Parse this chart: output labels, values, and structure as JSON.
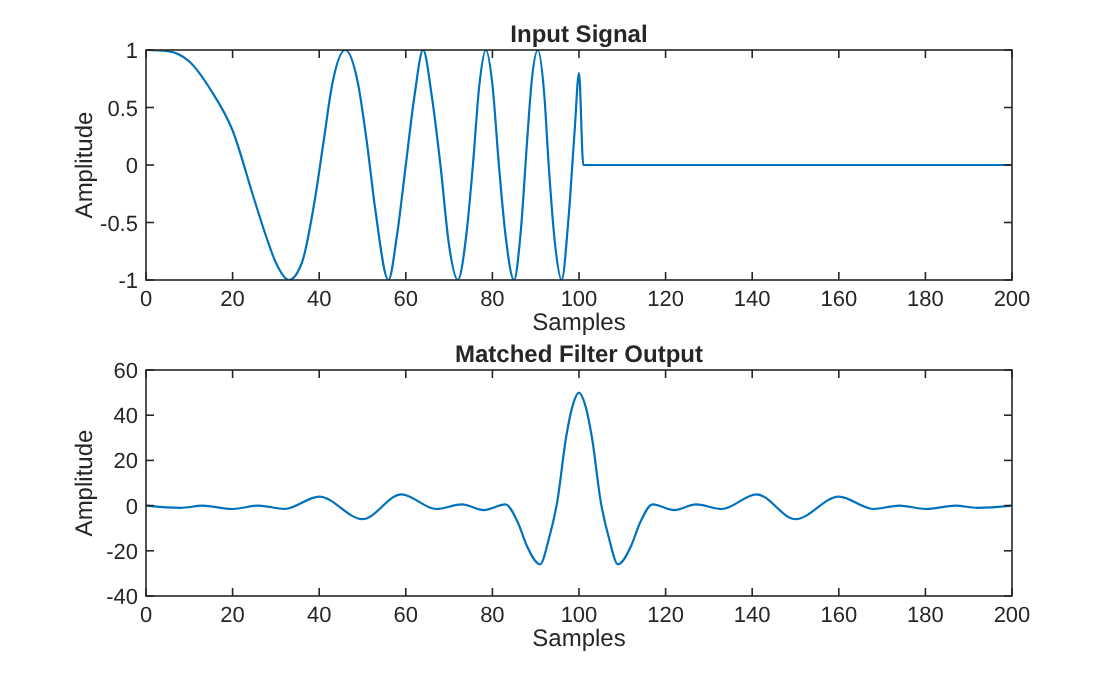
{
  "chart_data": [
    {
      "type": "line",
      "title": "Input Signal",
      "xlabel": "Samples",
      "ylabel": "Amplitude",
      "xlim": [
        0,
        200
      ],
      "xticks": [
        0,
        20,
        40,
        60,
        80,
        100,
        120,
        140,
        160,
        180,
        200
      ],
      "ylim": [
        -1,
        1
      ],
      "yticks": [
        -1,
        -0.5,
        0,
        0.5,
        1
      ],
      "grid": false,
      "series": [
        {
          "color": "#0072bd",
          "x": [
            0,
            5,
            10,
            15,
            20,
            25,
            28,
            30,
            33,
            36,
            39,
            41,
            43,
            46,
            49,
            51,
            53,
            56,
            58,
            60,
            62,
            64,
            66,
            68,
            70,
            72,
            74,
            75.5,
            77,
            78.5,
            80,
            81.5,
            83,
            85,
            86.5,
            88,
            89,
            90.5,
            92,
            93,
            94.5,
            96,
            97.5,
            99,
            100,
            101,
            200
          ],
          "values": [
            1,
            0.99,
            0.9,
            0.65,
            0.3,
            -0.3,
            -0.65,
            -0.85,
            -1,
            -0.85,
            -0.3,
            0.2,
            0.7,
            1,
            0.7,
            0.2,
            -0.4,
            -1,
            -0.6,
            0,
            0.6,
            1,
            0.6,
            0,
            -0.7,
            -1,
            -0.6,
            0,
            0.7,
            1,
            0.7,
            0,
            -0.6,
            -1,
            -0.6,
            0.2,
            0.7,
            1,
            0.6,
            0,
            -0.7,
            -1,
            -0.5,
            0.3,
            0.8,
            0,
            0
          ]
        }
      ]
    },
    {
      "type": "line",
      "title": "Matched Filter Output",
      "xlabel": "Samples",
      "ylabel": "Amplitude",
      "xlim": [
        0,
        200
      ],
      "xticks": [
        0,
        20,
        40,
        60,
        80,
        100,
        120,
        140,
        160,
        180,
        200
      ],
      "ylim": [
        -40,
        60
      ],
      "yticks": [
        -40,
        -20,
        0,
        20,
        40,
        60
      ],
      "grid": false,
      "series": [
        {
          "color": "#0072bd",
          "x": [
            0,
            8,
            13,
            20,
            26,
            32,
            40,
            50,
            59,
            67,
            73,
            78,
            83,
            86,
            88,
            91,
            93,
            95,
            97,
            98.5,
            100,
            101.5,
            103,
            105,
            107,
            109,
            112,
            114,
            117,
            122,
            127,
            133,
            141,
            150,
            160,
            168,
            174,
            180,
            187,
            192,
            200
          ],
          "values": [
            0,
            -1,
            0,
            -1.5,
            0,
            -1.5,
            4,
            -6,
            5,
            -1.5,
            0.5,
            -2,
            0.5,
            -8,
            -18,
            -26,
            -15,
            2,
            30,
            44,
            50,
            44,
            30,
            2,
            -15,
            -26,
            -18,
            -8,
            0.5,
            -2,
            0.5,
            -1.5,
            5,
            -6,
            4,
            -1.5,
            0,
            -1.5,
            0,
            -1,
            0
          ]
        }
      ]
    }
  ]
}
